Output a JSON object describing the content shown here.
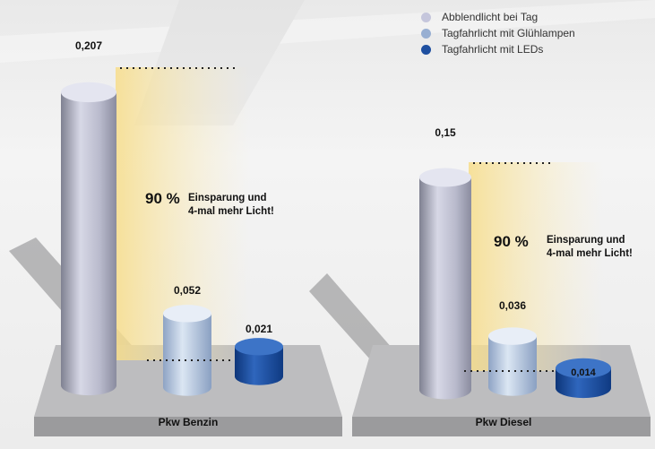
{
  "legend": {
    "items": [
      {
        "label": "Abblendlicht bei Tag",
        "color": "#c5c6dc"
      },
      {
        "label": "Tagfahrlicht mit Glühlampen",
        "color": "#98afd2"
      },
      {
        "label": "Tagfahrlicht mit LEDs",
        "color": "#1e4fa0"
      }
    ]
  },
  "annotations": [
    {
      "percent": "90 %",
      "line1": "Einsparung und",
      "line2": "4-mal mehr Licht!"
    },
    {
      "percent": "90 %",
      "line1": "Einsparung und",
      "line2": "4-mal mehr Licht!"
    }
  ],
  "chart_data": {
    "type": "bar",
    "categories": [
      "Pkw Benzin",
      "Pkw Diesel"
    ],
    "series": [
      {
        "name": "Abblendlicht bei Tag",
        "values": [
          0.207,
          0.15
        ],
        "labels": [
          "0,207",
          "0,15"
        ]
      },
      {
        "name": "Tagfahrlicht mit Glühlampen",
        "values": [
          0.052,
          0.036
        ],
        "labels": [
          "0,052",
          "0,036"
        ]
      },
      {
        "name": "Tagfahrlicht mit LEDs",
        "values": [
          0.021,
          0.014
        ],
        "labels": [
          "0,021",
          "0,014"
        ]
      }
    ],
    "title": "",
    "xlabel": "",
    "ylabel": ""
  }
}
